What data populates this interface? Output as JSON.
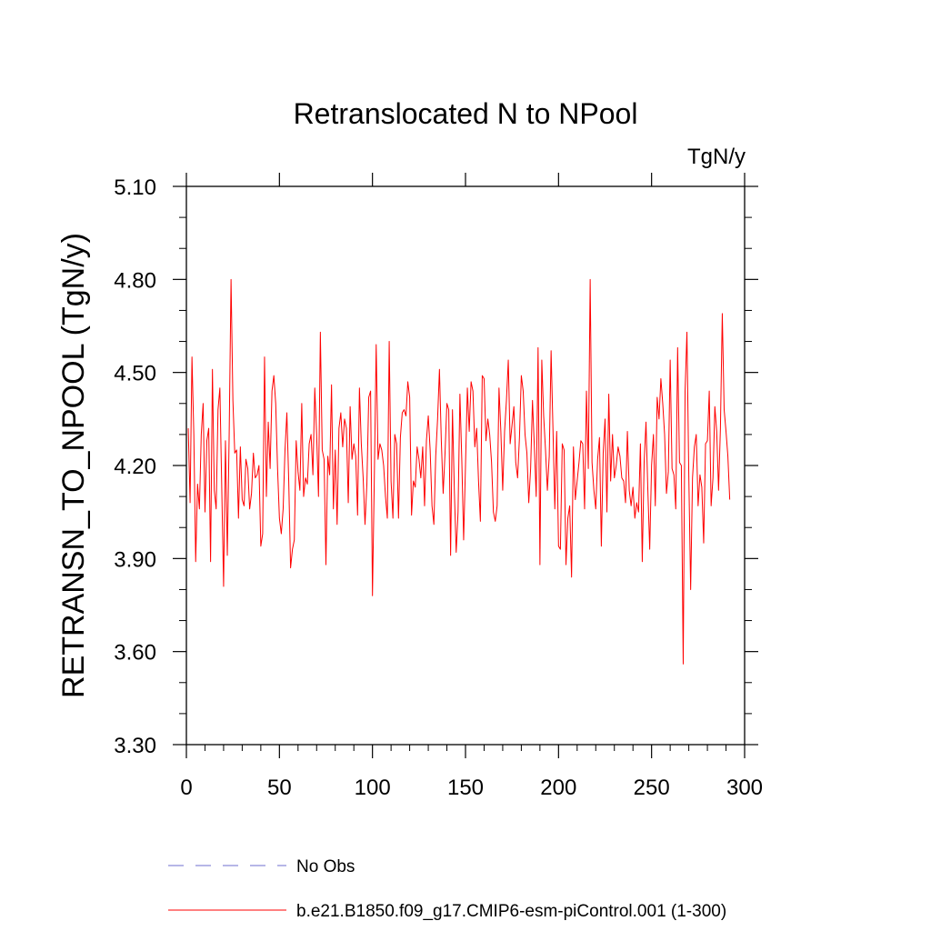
{
  "chart_data": {
    "type": "line",
    "title": "Retranslocated N to NPool",
    "units_label": "TgN/y",
    "xlabel": "",
    "ylabel": "RETRANSN_TO_NPOOL  (TgN/y)",
    "xlim": [
      0,
      300
    ],
    "ylim": [
      3.3,
      5.1
    ],
    "x_ticks": [
      0,
      50,
      100,
      150,
      200,
      250,
      300
    ],
    "x_tick_labels": [
      "0",
      "50",
      "100",
      "150",
      "200",
      "250",
      "300"
    ],
    "y_ticks": [
      3.3,
      3.6,
      3.9,
      4.2,
      4.5,
      4.8,
      5.1
    ],
    "y_tick_labels": [
      "3.30",
      "3.60",
      "3.90",
      "4.20",
      "4.50",
      "4.80",
      "5.10"
    ],
    "grid": false,
    "legend_position": "bottom",
    "legend": [
      {
        "name": "No Obs",
        "style": "dashed",
        "color": "#6f6fcf"
      },
      {
        "name": "b.e21.B1850.f09_g17.CMIP6-esm-piControl.001 (1-300)",
        "style": "solid",
        "color": "#ff0000"
      }
    ],
    "series": [
      {
        "name": "b.e21.B1850.f09_g17.CMIP6-esm-piControl.001 (1-300)",
        "color": "#ff0000",
        "x_start": 1,
        "x_step": 1,
        "values": [
          4.32,
          4.08,
          4.55,
          4.3,
          3.89,
          4.14,
          4.06,
          4.3,
          4.4,
          4.05,
          4.28,
          4.32,
          3.89,
          4.51,
          4.12,
          4.06,
          4.38,
          4.45,
          4.13,
          3.81,
          4.28,
          3.91,
          4.3,
          4.8,
          4.41,
          4.24,
          4.25,
          4.03,
          4.26,
          4.09,
          4.07,
          4.22,
          4.19,
          4.06,
          4.11,
          4.24,
          4.16,
          4.17,
          4.2,
          3.94,
          3.98,
          4.55,
          4.1,
          4.34,
          4.19,
          4.44,
          4.49,
          4.4,
          4.19,
          4.03,
          3.98,
          4.06,
          4.25,
          4.37,
          4.15,
          3.87,
          3.93,
          3.96,
          4.28,
          4.18,
          4.12,
          4.4,
          4.1,
          4.16,
          4.14,
          4.27,
          4.3,
          4.17,
          4.45,
          4.3,
          4.1,
          4.63,
          4.25,
          4.22,
          3.88,
          4.23,
          4.17,
          4.46,
          4.06,
          4.25,
          4.01,
          4.32,
          4.37,
          4.26,
          4.35,
          4.32,
          4.08,
          4.39,
          4.22,
          4.27,
          4.23,
          4.04,
          4.45,
          4.27,
          4.16,
          4.01,
          4.14,
          4.42,
          4.44,
          3.78,
          4.16,
          4.59,
          4.22,
          4.27,
          4.25,
          4.2,
          4.1,
          4.03,
          4.6,
          4.15,
          4.03,
          4.3,
          4.27,
          4.03,
          4.29,
          4.37,
          4.38,
          4.36,
          4.47,
          4.42,
          4.04,
          4.15,
          4.13,
          4.26,
          4.22,
          4.16,
          4.26,
          4.07,
          4.28,
          4.36,
          4.25,
          4.07,
          4.01,
          4.23,
          4.35,
          4.51,
          4.28,
          4.11,
          4.24,
          4.4,
          4.38,
          3.91,
          4.38,
          4.12,
          3.92,
          4.05,
          4.43,
          4.22,
          3.96,
          4.2,
          4.45,
          4.31,
          4.47,
          4.44,
          4.26,
          4.32,
          4.15,
          4.02,
          4.49,
          4.48,
          4.28,
          4.35,
          4.3,
          4.21,
          4.05,
          4.02,
          4.07,
          4.45,
          4.31,
          4.12,
          4.31,
          4.41,
          4.54,
          4.27,
          4.33,
          4.39,
          4.21,
          4.16,
          4.29,
          4.49,
          4.44,
          4.3,
          4.24,
          4.08,
          4.19,
          4.41,
          4.26,
          4.1,
          4.58,
          3.88,
          4.54,
          4.36,
          4.25,
          4.12,
          4.23,
          4.57,
          4.32,
          4.06,
          4.31,
          3.94,
          3.93,
          4.27,
          4.25,
          3.88,
          4.03,
          4.07,
          3.84,
          4.26,
          4.09,
          4.15,
          4.21,
          4.28,
          4.27,
          4.06,
          4.44,
          4.19,
          4.8,
          4.21,
          4.12,
          4.06,
          4.22,
          4.29,
          3.94,
          4.24,
          4.35,
          4.05,
          4.43,
          4.15,
          4.3,
          4.16,
          4.2,
          4.26,
          4.23,
          4.16,
          4.15,
          4.08,
          4.31,
          4.12,
          4.07,
          4.13,
          4.03,
          4.08,
          4.05,
          4.27,
          3.89,
          4.21,
          4.34,
          4.12,
          3.93,
          4.2,
          4.3,
          4.07,
          4.42,
          4.35,
          4.48,
          4.4,
          4.3,
          4.11,
          4.18,
          4.54,
          4.19,
          4.17,
          4.06,
          4.58,
          4.21,
          4.2,
          3.56,
          4.44,
          4.63,
          4.17,
          3.8,
          4.16,
          4.26,
          4.3,
          4.07,
          4.17,
          4.13,
          3.95,
          4.27,
          4.28,
          4.44,
          4.07,
          4.16,
          4.39,
          4.31,
          4.12,
          4.32,
          4.69,
          4.38,
          4.31,
          4.23,
          4.09
        ]
      }
    ]
  }
}
